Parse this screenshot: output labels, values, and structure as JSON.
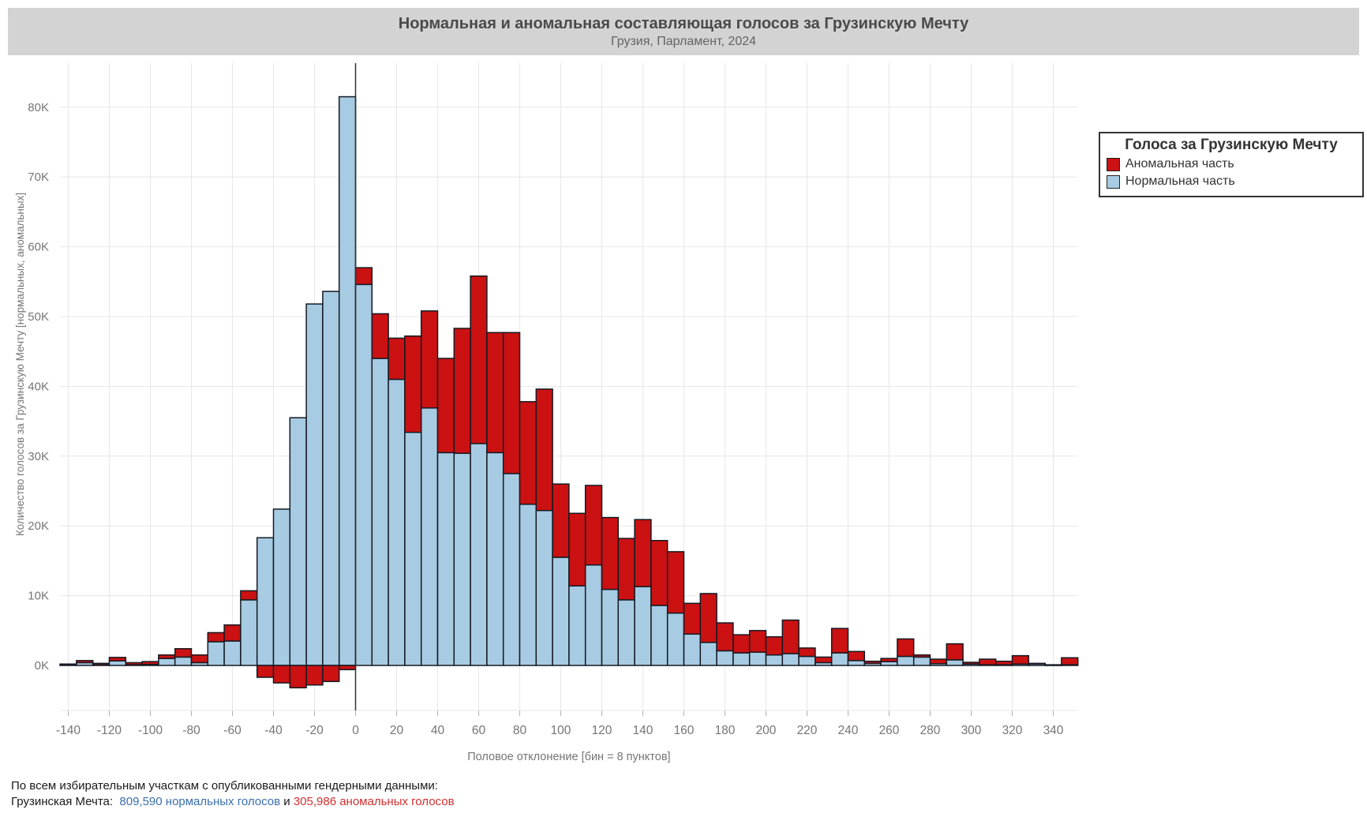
{
  "header": {
    "title": "Нормальная и аномальная составляющая голосов за Грузинскую Мечту",
    "subtitle": "Грузия, Парламент, 2024"
  },
  "legend": {
    "title": "Голоса за Грузинскую Мечту",
    "items": [
      {
        "label": "Аномальная часть",
        "color": "#cb1111"
      },
      {
        "label": "Нормальная часть",
        "color": "#a7cbe3"
      }
    ]
  },
  "axes": {
    "x_label": "Половое отклонение [бин = 8 пунктов]",
    "y_label": "Количество голосов за Грузинскую Мечту [нормальных, аномальных]",
    "x_ticks": [
      -140,
      -120,
      -100,
      -80,
      -60,
      -40,
      -20,
      0,
      20,
      40,
      60,
      80,
      100,
      120,
      140,
      160,
      180,
      200,
      220,
      240,
      260,
      280,
      300,
      320,
      340
    ],
    "y_ticks": [
      {
        "v": 0,
        "label": "0K"
      },
      {
        "v": 10,
        "label": "10K"
      },
      {
        "v": 20,
        "label": "20K"
      },
      {
        "v": 30,
        "label": "30K"
      },
      {
        "v": 40,
        "label": "40K"
      },
      {
        "v": 50,
        "label": "50K"
      },
      {
        "v": 60,
        "label": "60K"
      },
      {
        "v": 70,
        "label": "70K"
      },
      {
        "v": 80,
        "label": "80K"
      }
    ]
  },
  "footer": {
    "line1": "По всем избирательным участкам с опубликованными гендерными данными:",
    "gd_label": "Грузинская Мечта:  ",
    "normal": "809,590 нормальных голосов",
    "and": " и ",
    "anomalous": "305,986 аномальных голосов"
  },
  "colors": {
    "normal": "#a7cbe3",
    "anomalous": "#cb1111",
    "outline": "#151a23",
    "grid": "#e7e7e7",
    "tick_text": "#757575",
    "zero_line": "#333333",
    "title_bar": "#d3d3d3"
  },
  "chart_data": {
    "type": "bar",
    "stacked": true,
    "title": "Нормальная и аномальная составляющая голосов за Грузинскую Мечту",
    "subtitle": "Грузия, Парламент, 2024",
    "xlabel": "Половое отклонение [бин = 8 пунктов]",
    "ylabel": "Количество голосов за Грузинскую Мечту [нормальных, аномальных]",
    "units": "thousands of votes",
    "bin_width": 8,
    "xlim": [
      -144,
      352
    ],
    "ylim": [
      -6.5,
      85.5
    ],
    "grid": true,
    "legend_position": "top-right",
    "bin_left_edges": [
      -144,
      -136,
      -128,
      -120,
      -112,
      -104,
      -96,
      -88,
      -80,
      -72,
      -64,
      -56,
      -48,
      -40,
      -32,
      -24,
      -16,
      -8,
      0,
      8,
      16,
      24,
      32,
      40,
      48,
      56,
      64,
      72,
      80,
      88,
      96,
      104,
      112,
      120,
      128,
      136,
      144,
      152,
      160,
      168,
      176,
      184,
      192,
      200,
      208,
      216,
      224,
      232,
      240,
      248,
      256,
      264,
      272,
      280,
      288,
      296,
      304,
      312,
      320,
      328,
      336,
      344
    ],
    "series": [
      {
        "name": "Нормальная часть",
        "values": [
          0.05,
          0.4,
          0.1,
          0.65,
          0.1,
          0.15,
          1.0,
          1.2,
          0.4,
          3.4,
          3.5,
          9.4,
          18.3,
          22.4,
          35.5,
          51.8,
          53.6,
          81.5,
          54.6,
          44.0,
          41.0,
          33.4,
          36.9,
          30.5,
          30.4,
          31.8,
          30.5,
          27.5,
          23.1,
          22.2,
          15.5,
          11.4,
          14.4,
          10.9,
          9.4,
          11.3,
          8.6,
          7.5,
          4.5,
          3.3,
          2.1,
          1.8,
          1.9,
          1.5,
          1.7,
          1.3,
          0.4,
          1.8,
          0.7,
          0.3,
          0.55,
          1.3,
          1.2,
          0.25,
          0.8,
          0.2,
          0.1,
          0.1,
          0.2,
          0.25,
          0.05,
          0.1
        ]
      },
      {
        "name": "Аномальная часть",
        "values": [
          0.15,
          0.3,
          0.2,
          0.5,
          0.3,
          0.4,
          0.5,
          1.2,
          1.1,
          1.3,
          2.3,
          1.3,
          -1.7,
          -2.5,
          -3.2,
          -2.8,
          -2.3,
          -0.6,
          2.4,
          6.4,
          5.9,
          13.8,
          13.9,
          13.5,
          17.9,
          24.0,
          17.2,
          20.2,
          14.7,
          17.4,
          10.5,
          10.4,
          11.4,
          10.3,
          8.8,
          9.6,
          9.3,
          8.8,
          4.4,
          7.0,
          4.0,
          2.6,
          3.1,
          2.6,
          4.8,
          1.2,
          0.8,
          3.5,
          1.3,
          0.3,
          0.45,
          2.5,
          0.3,
          0.65,
          2.3,
          0.25,
          0.8,
          0.5,
          1.2,
          0.05,
          0.05,
          1.0
        ]
      }
    ],
    "totals": {
      "normal_votes": "809,590",
      "anomalous_votes": "305,986"
    }
  }
}
